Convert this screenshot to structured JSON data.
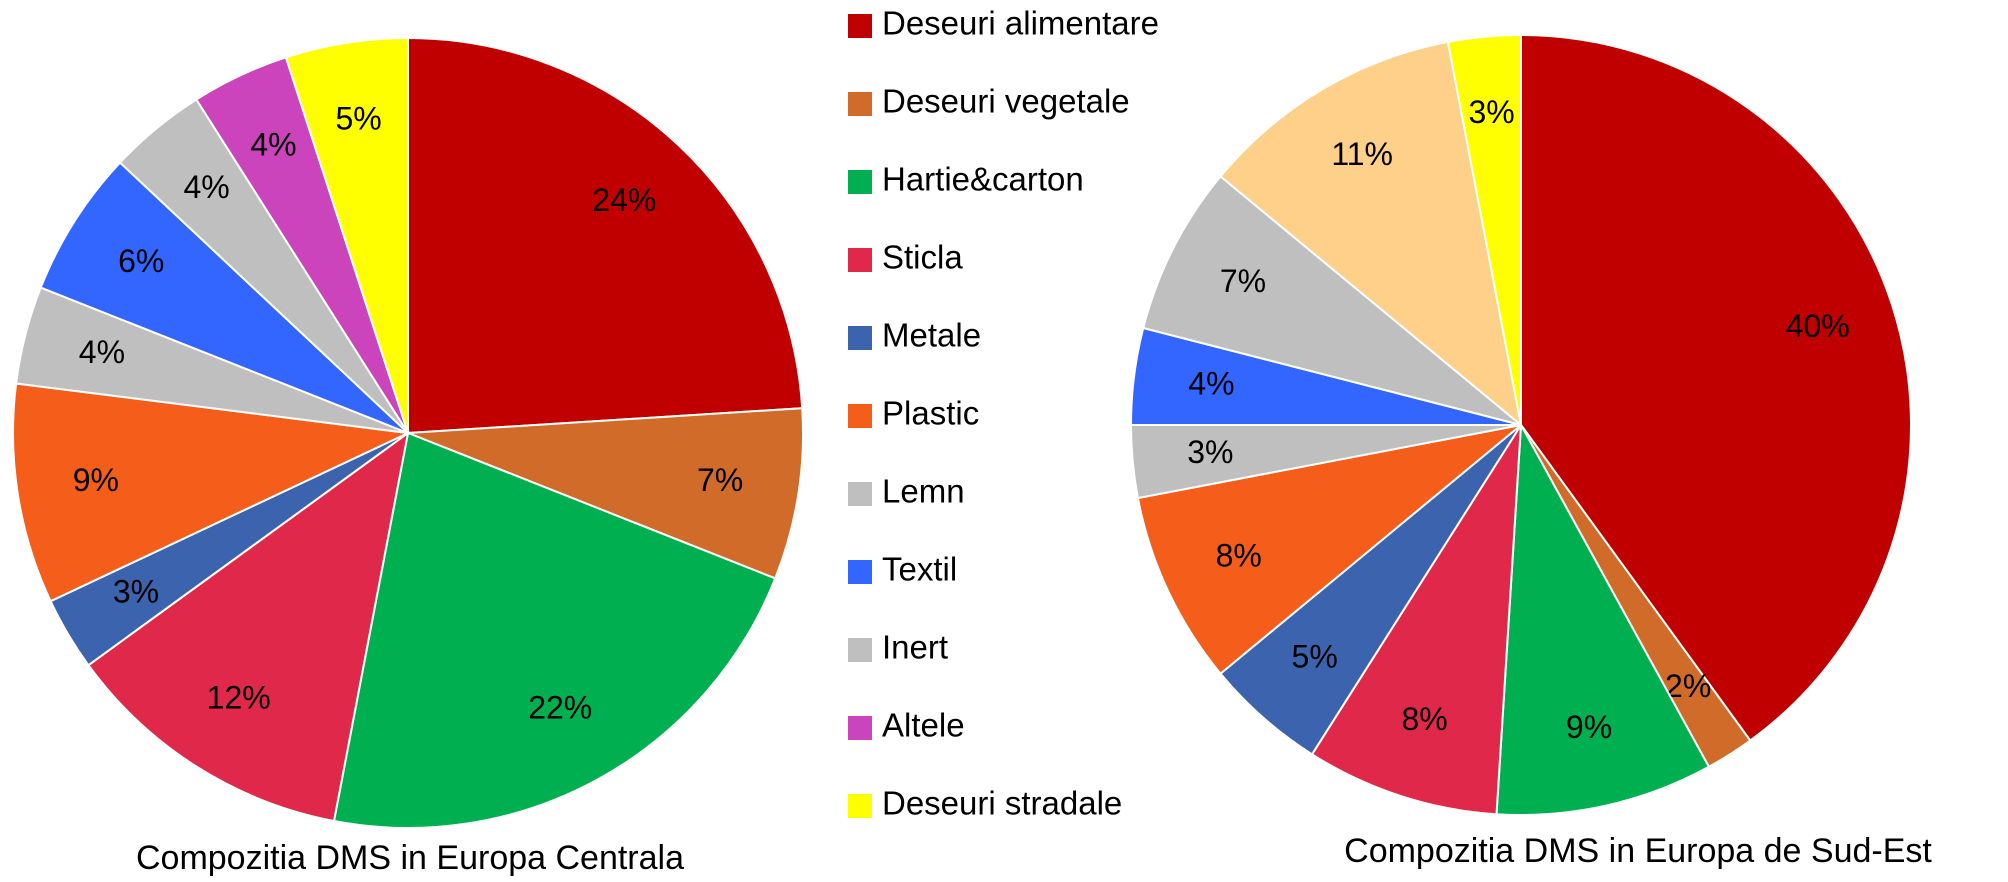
{
  "chart_data": [
    {
      "type": "pie",
      "title": "Compozitia DMS in Europa Centrala",
      "categories": [
        "Deseuri alimentare",
        "Deseuri vegetale",
        "Hartie&carton",
        "Sticla",
        "Metale",
        "Plastic",
        "Lemn",
        "Textil",
        "Inert",
        "Altele",
        "Deseuri stradale"
      ],
      "values": [
        24,
        7,
        22,
        12,
        3,
        9,
        4,
        6,
        4,
        4,
        5
      ],
      "value_labels": [
        "24%",
        "7%",
        "22%",
        "12%",
        "3%",
        "9%",
        "4%",
        "6%",
        "4%",
        "4%",
        "5%"
      ],
      "colors": [
        "#c00000",
        "#d06b2a",
        "#00b050",
        "#e0294a",
        "#3c63ae",
        "#f45d1a",
        "#bfbfbf",
        "#3366ff",
        "#bfbfbf",
        "#cc44bb",
        "#ffff00"
      ]
    },
    {
      "type": "pie",
      "title": "Compozitia DMS in Europa de Sud-Est",
      "values": [
        40,
        2,
        9,
        8,
        5,
        8,
        3,
        4,
        7,
        11,
        3
      ],
      "value_labels": [
        "40%",
        "2%",
        "9%",
        "8%",
        "5%",
        "8%",
        "3%",
        "4%",
        "7%",
        "11%",
        "3%"
      ],
      "colors": [
        "#c00000",
        "#d06b2a",
        "#00b050",
        "#e0294a",
        "#3c63ae",
        "#f45d1a",
        "#bfbfbf",
        "#3366ff",
        "#bfbfbf",
        "#ffd08a",
        "#ffff00"
      ]
    }
  ]
}
